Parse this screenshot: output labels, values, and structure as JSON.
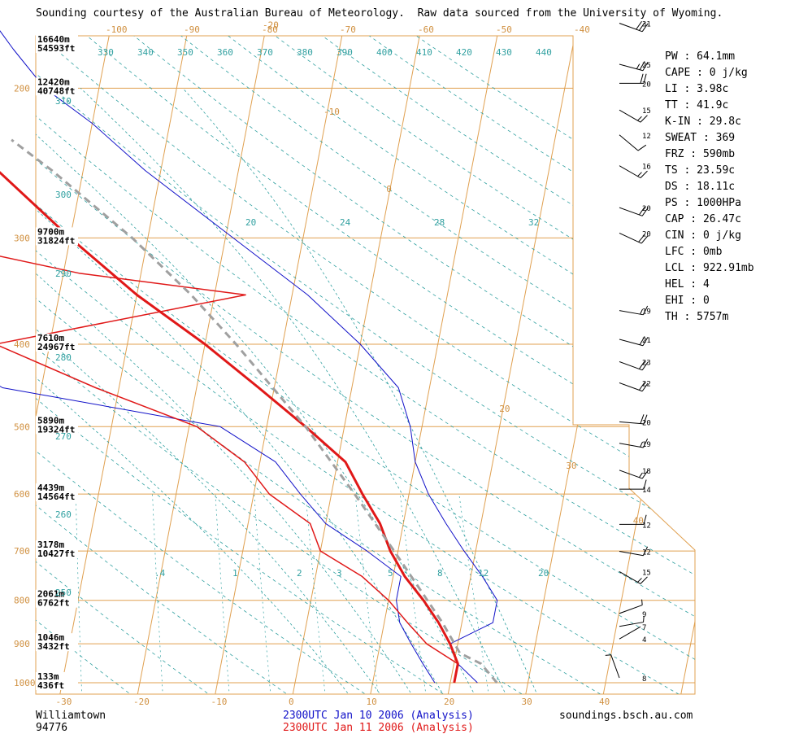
{
  "header": {
    "credit": "Sounding courtesy of the Australian Bureau of Meteorology.  Raw data sourced from the University of Wyoming."
  },
  "footer": {
    "station_name": "Williamtown",
    "station_id": "94776",
    "run1": "2300UTC Jan 10 2006 (Analysis)",
    "run2": "2300UTC Jan 11 2006 (Analysis)",
    "site": "soundings.bsch.au.com"
  },
  "indices": [
    {
      "label": "PW",
      "value": "64.1mm"
    },
    {
      "label": "CAPE",
      "value": "0 j/kg"
    },
    {
      "label": "LI",
      "value": "3.98c"
    },
    {
      "label": "TT",
      "value": "41.9c"
    },
    {
      "label": "K-IN",
      "value": "29.8c"
    },
    {
      "label": "SWEAT",
      "value": "369"
    },
    {
      "label": "FRZ",
      "value": "590mb"
    },
    {
      "label": "TS",
      "value": "23.59c"
    },
    {
      "label": "DS",
      "value": "18.11c"
    },
    {
      "label": "PS",
      "value": "1000HPa"
    },
    {
      "label": "CAP",
      "value": "26.47c"
    },
    {
      "label": "CIN",
      "value": "0 j/kg"
    },
    {
      "label": "LFC",
      "value": "0mb"
    },
    {
      "label": "LCL",
      "value": "922.91mb"
    },
    {
      "label": "HEL",
      "value": "4"
    },
    {
      "label": "EHI",
      "value": "0"
    },
    {
      "label": "TH",
      "value": "5757m"
    }
  ],
  "colors": {
    "grid": "#e0a050",
    "grid_label": "#d09040",
    "adiabat": "#30a0a0",
    "run1": "#1010c8",
    "run2": "#e01818",
    "parcel": "#a0a0a0"
  },
  "chart_data": {
    "type": "skew-t",
    "x_ticks": [
      -30,
      -20,
      -10,
      0,
      10,
      20,
      30,
      40
    ],
    "pressure_ticks": [
      200,
      300,
      400,
      500,
      600,
      700,
      800,
      900,
      1000
    ],
    "height_labels": [
      {
        "p": 100,
        "m": "16640m",
        "ft": "54593ft"
      },
      {
        "p": 200,
        "m": "12420m",
        "ft": "40748ft"
      },
      {
        "p": 300,
        "m": "9700m",
        "ft": "31824ft"
      },
      {
        "p": 400,
        "m": "7610m",
        "ft": "24967ft"
      },
      {
        "p": 500,
        "m": "5890m",
        "ft": "19324ft"
      },
      {
        "p": 600,
        "m": "4439m",
        "ft": "14564ft"
      },
      {
        "p": 700,
        "m": "3178m",
        "ft": "10427ft"
      },
      {
        "p": 800,
        "m": "2061m",
        "ft": "6762ft"
      },
      {
        "p": 900,
        "m": "1046m",
        "ft": "3432ft"
      },
      {
        "p": 1000,
        "m": "133m",
        "ft": "436ft"
      }
    ],
    "isotherm_labels_top": [
      "-100",
      "-90",
      "-80",
      "-70",
      "-60",
      "-50",
      "-40"
    ],
    "isotherm_labels_right": [
      {
        "p": 130,
        "t": "-30"
      },
      {
        "p": 170,
        "t": "-20"
      },
      {
        "p": 215,
        "t": "-10"
      },
      {
        "p": 265,
        "t": "0"
      },
      {
        "p": 480,
        "t": "20"
      },
      {
        "p": 560,
        "t": "30"
      },
      {
        "p": 650,
        "t": "40"
      }
    ],
    "theta_labels": [
      "330",
      "340",
      "350",
      "360",
      "370",
      "380",
      "390",
      "400",
      "410",
      "420",
      "430",
      "440",
      "310",
      "300",
      "290",
      "280",
      "270",
      "260",
      "250"
    ],
    "theta_e_labels": [
      "20",
      "24",
      "28",
      "32"
    ],
    "mixing_ratio_labels": [
      ".4",
      "1",
      "2",
      "3",
      "5",
      "8",
      "12",
      "20"
    ],
    "series": [
      {
        "name": "2300UTC Jan 10 2006 (Analysis)",
        "temperature": [
          [
            1000,
            23.5
          ],
          [
            950,
            20.5
          ],
          [
            900,
            19
          ],
          [
            850,
            24
          ],
          [
            800,
            24
          ],
          [
            750,
            21.5
          ],
          [
            700,
            18.5
          ],
          [
            650,
            15.5
          ],
          [
            600,
            12.5
          ],
          [
            550,
            10
          ],
          [
            500,
            8.5
          ],
          [
            450,
            6
          ],
          [
            400,
            0
          ],
          [
            350,
            -8
          ],
          [
            300,
            -19
          ],
          [
            250,
            -32
          ],
          [
            220,
            -40
          ],
          [
            200,
            -47
          ],
          [
            180,
            -52
          ],
          [
            150,
            -60
          ]
        ],
        "dewpoint": [
          [
            1000,
            18
          ],
          [
            950,
            16
          ],
          [
            900,
            14
          ],
          [
            850,
            12
          ],
          [
            800,
            11
          ],
          [
            750,
            11
          ],
          [
            700,
            6
          ],
          [
            650,
            0
          ],
          [
            600,
            -4
          ],
          [
            550,
            -8
          ],
          [
            500,
            -16
          ],
          [
            450,
            -45
          ],
          [
            400,
            -55
          ],
          [
            350,
            -57
          ],
          [
            300,
            -64
          ],
          [
            270,
            -83
          ],
          [
            250,
            -80
          ],
          [
            230,
            -75
          ],
          [
            200,
            -96
          ],
          [
            180,
            -96
          ]
        ]
      },
      {
        "name": "2300UTC Jan 11 2006 (Analysis)",
        "temperature": [
          [
            1000,
            20.5
          ],
          [
            950,
            20.5
          ],
          [
            900,
            19
          ],
          [
            850,
            17
          ],
          [
            800,
            14.5
          ],
          [
            750,
            11.5
          ],
          [
            700,
            9
          ],
          [
            650,
            7
          ],
          [
            600,
            4
          ],
          [
            550,
            1
          ],
          [
            500,
            -5
          ],
          [
            450,
            -12
          ],
          [
            400,
            -20
          ],
          [
            350,
            -30
          ],
          [
            300,
            -40
          ],
          [
            250,
            -51
          ],
          [
            220,
            -55
          ],
          [
            200,
            -58
          ],
          [
            180,
            -60
          ],
          [
            150,
            -64
          ]
        ],
        "dewpoint": [
          [
            1000,
            20.5
          ],
          [
            950,
            20.5
          ],
          [
            900,
            16
          ],
          [
            850,
            13
          ],
          [
            800,
            10
          ],
          [
            750,
            6
          ],
          [
            700,
            0
          ],
          [
            650,
            -2
          ],
          [
            600,
            -8
          ],
          [
            550,
            -12
          ],
          [
            500,
            -19
          ],
          [
            450,
            -33
          ],
          [
            400,
            -47
          ],
          [
            350,
            -16
          ],
          [
            330,
            -38
          ],
          [
            300,
            -60
          ],
          [
            280,
            -70
          ],
          [
            250,
            -78
          ],
          [
            220,
            -90
          ],
          [
            200,
            -100
          ],
          [
            150,
            -102
          ]
        ]
      }
    ],
    "parcel_path": [
      [
        1000,
        26
      ],
      [
        950,
        23.5
      ],
      [
        922.9,
        20.5
      ],
      [
        850,
        17.5
      ],
      [
        800,
        15
      ],
      [
        700,
        9.5
      ],
      [
        600,
        3
      ],
      [
        500,
        -5
      ],
      [
        400,
        -16
      ],
      [
        350,
        -23
      ],
      [
        300,
        -32
      ],
      [
        250,
        -44
      ],
      [
        230,
        -50
      ]
    ],
    "wind_barbs": [
      {
        "p": 100,
        "speed": "17",
        "dir": 290
      },
      {
        "p": 140,
        "speed": "37",
        "dir": 280
      },
      {
        "p": 170,
        "speed": "31",
        "dir": 290
      },
      {
        "p": 190,
        "speed": "25",
        "dir": 285
      },
      {
        "p": 200,
        "speed": "20",
        "dir": 270
      },
      {
        "p": 215,
        "speed": "15",
        "dir": 300
      },
      {
        "p": 230,
        "speed": "12",
        "dir": 310
      },
      {
        "p": 250,
        "speed": "16",
        "dir": 300
      },
      {
        "p": 280,
        "speed": "20",
        "dir": 290
      },
      {
        "p": 300,
        "speed": "20",
        "dir": 295
      },
      {
        "p": 370,
        "speed": "19",
        "dir": 280
      },
      {
        "p": 400,
        "speed": "21",
        "dir": 285
      },
      {
        "p": 425,
        "speed": "23",
        "dir": 290
      },
      {
        "p": 450,
        "speed": "22",
        "dir": 290
      },
      {
        "p": 500,
        "speed": "20",
        "dir": 275
      },
      {
        "p": 530,
        "speed": "19",
        "dir": 280
      },
      {
        "p": 570,
        "speed": "18",
        "dir": 290
      },
      {
        "p": 600,
        "speed": "14",
        "dir": 270
      },
      {
        "p": 660,
        "speed": "12",
        "dir": 270
      },
      {
        "p": 710,
        "speed": "12",
        "dir": 280
      },
      {
        "p": 750,
        "speed": "15",
        "dir": 300
      },
      {
        "p": 840,
        "speed": "9",
        "dir": 250
      },
      {
        "p": 870,
        "speed": "7",
        "dir": 260
      },
      {
        "p": 900,
        "speed": "4",
        "dir": 240
      },
      {
        "p": 1000,
        "speed": "8",
        "dir": 160
      }
    ]
  }
}
